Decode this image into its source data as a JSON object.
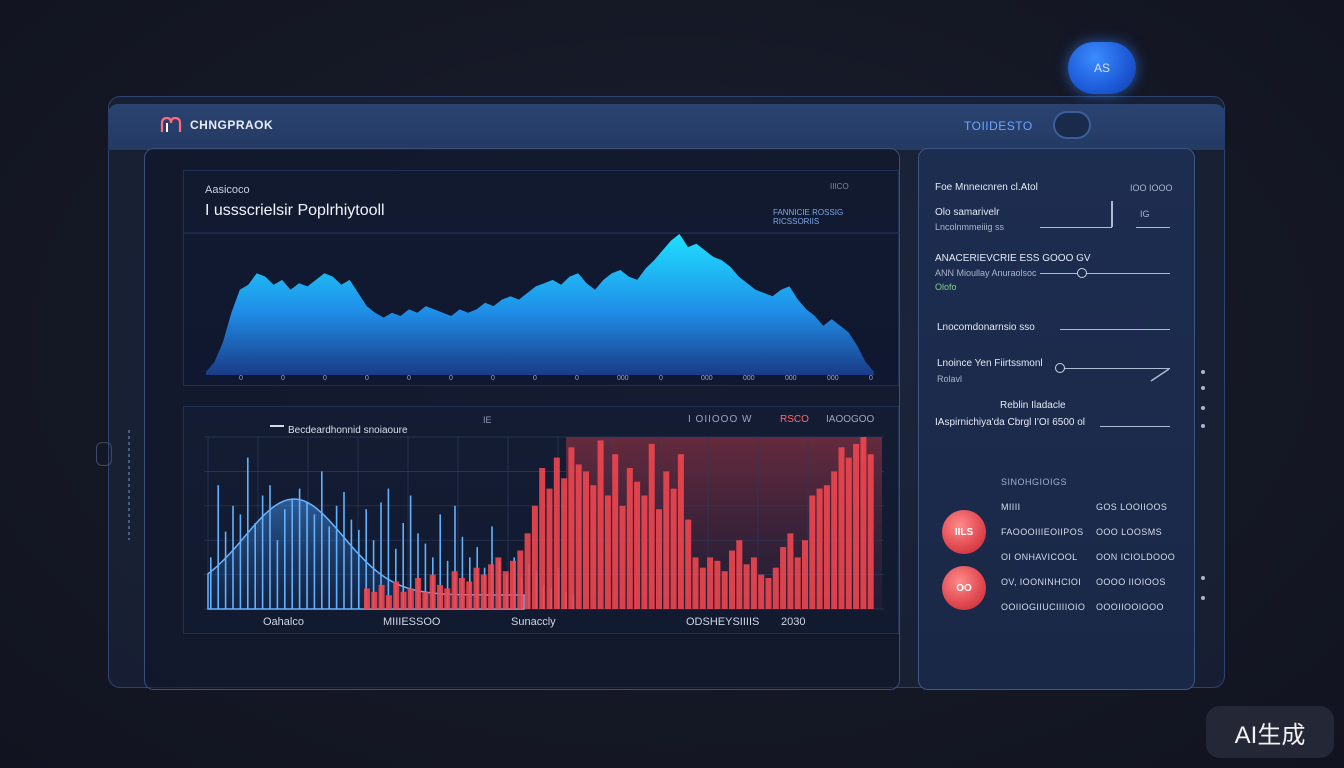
{
  "header": {
    "brand": "CHNGPRAOK",
    "link": "TOIIDESTO",
    "avatar_text": "AS"
  },
  "chart1": {
    "subtitle": "Aasicoco",
    "title": "I ussscrielsir Poplrhiytooll",
    "legend_a": "FANNICIE ROSSIG",
    "legend_b": "RICSSORIIS",
    "legend_c": "IIICO",
    "x_ticks": [
      "0",
      "0",
      "0",
      "0",
      "0",
      "0",
      "0",
      "0",
      "0",
      "000",
      "0",
      "000",
      "000",
      "000",
      "000",
      "0"
    ]
  },
  "chart2": {
    "legend": "Becdeardhonnid snoiaoure",
    "tag": "IE",
    "right_label": "I OIIOOO W",
    "right_red": "RSCO",
    "right_label2": "IAOOGOO",
    "footer": [
      "Oahalco",
      "MIIIESSOO",
      "Sunaccly",
      "ODSHEYSIIIIS",
      "2030"
    ]
  },
  "side": {
    "header_left": "Foe Mnneıcnren cl.Atol",
    "header_right": "IOO IOOO",
    "item1_title": "Olo samarivelr",
    "item1_sub": "Lncolnmmeiiig ss",
    "item1_value": "IG",
    "item2_title": "ANACERIEVCRIE ESS GOOO GV",
    "item2_sub": "ANN Mioullay Anuraolsoc",
    "item2_status": "Olofo",
    "item3_title": "Lnocomdonarnsio sso",
    "item4_title": "Lnoince Yen Fiirtssmonl",
    "item4_sub": "Rolavl",
    "item5_title": "Reblin Iladacle",
    "item5_sub": "IAspirnichiya'da Cbrgl I'OI 6500 ol",
    "section_label": "SINOHGIOIGS",
    "rows": [
      {
        "left": "MIIII",
        "right": "GOS LOOIIOOS"
      },
      {
        "left": "FAOOOIIIEOIIPOS",
        "right": "OOO LOOSMS"
      },
      {
        "left": "OI ONHAVICOOL",
        "right": "OON ICIOLDOOO"
      },
      {
        "left": "OV, IOONINHCIOI",
        "right": "OOOO IIOIOOS"
      },
      {
        "left": "OOIIOGIIUCIIIIOIO",
        "right": "OOOIIOOIOOO"
      }
    ],
    "badge1": "IILS",
    "badge2": "OO"
  },
  "watermark": "AI生成",
  "chart_data": [
    {
      "type": "area",
      "title": "I ussscrielsir Poplrhiytooll",
      "xlabel": "",
      "ylabel": "",
      "x": [
        0,
        1,
        2,
        3,
        4,
        5,
        6,
        7,
        8,
        9,
        10,
        11,
        12,
        13,
        14,
        15,
        16,
        17,
        18,
        19,
        20,
        21,
        22,
        23,
        24,
        25,
        26,
        27,
        28,
        29,
        30,
        31,
        32,
        33,
        34,
        35,
        36,
        37,
        38,
        39,
        40,
        41,
        42,
        43,
        44,
        45,
        46,
        47,
        48,
        49,
        50,
        51,
        52,
        53,
        54,
        55,
        56,
        57,
        58,
        59,
        60,
        61,
        62,
        63,
        64,
        65,
        66,
        67,
        68,
        69,
        70,
        71,
        72,
        73,
        74,
        75,
        76,
        77,
        78,
        79
      ],
      "values": [
        2,
        8,
        20,
        38,
        52,
        55,
        62,
        60,
        55,
        58,
        52,
        56,
        54,
        58,
        62,
        60,
        55,
        58,
        50,
        42,
        38,
        35,
        38,
        36,
        40,
        38,
        42,
        40,
        38,
        36,
        40,
        38,
        40,
        44,
        42,
        46,
        48,
        46,
        50,
        54,
        56,
        58,
        55,
        60,
        62,
        56,
        52,
        58,
        62,
        64,
        60,
        58,
        65,
        70,
        76,
        82,
        86,
        78,
        80,
        76,
        72,
        70,
        66,
        60,
        56,
        52,
        50,
        48,
        52,
        54,
        46,
        40,
        36,
        30,
        34,
        30,
        26,
        18,
        8,
        2
      ],
      "ylim": [
        0,
        100
      ]
    },
    {
      "type": "bar",
      "title": "Becdeardhonnid snoiaoure",
      "series": [
        {
          "name": "blue",
          "values": [
            30,
            72,
            45,
            60,
            55,
            88,
            50,
            66,
            72,
            40,
            58,
            64,
            70,
            62,
            55,
            80,
            48,
            60,
            68,
            52,
            46,
            58,
            40,
            62,
            70,
            35,
            50,
            66,
            44,
            38,
            30,
            55,
            28,
            60,
            42,
            30,
            36,
            24,
            48,
            28,
            20,
            30,
            18,
            26,
            22,
            14,
            12,
            24,
            10,
            8
          ]
        },
        {
          "name": "red",
          "values": [
            12,
            10,
            14,
            8,
            16,
            10,
            12,
            18,
            10,
            20,
            14,
            12,
            22,
            18,
            16,
            24,
            20,
            26,
            30,
            22,
            28,
            34,
            44,
            60,
            82,
            70,
            88,
            76,
            94,
            84,
            80,
            72,
            98,
            66,
            90,
            60,
            82,
            74,
            66,
            96,
            58,
            80,
            70,
            90,
            52,
            30,
            24,
            30,
            28,
            22,
            34,
            40,
            26,
            30,
            20,
            18,
            24,
            36,
            44,
            30,
            40,
            66,
            70,
            72,
            80,
            94,
            88,
            96,
            100,
            90
          ]
        }
      ],
      "ylim": [
        0,
        100
      ]
    }
  ]
}
